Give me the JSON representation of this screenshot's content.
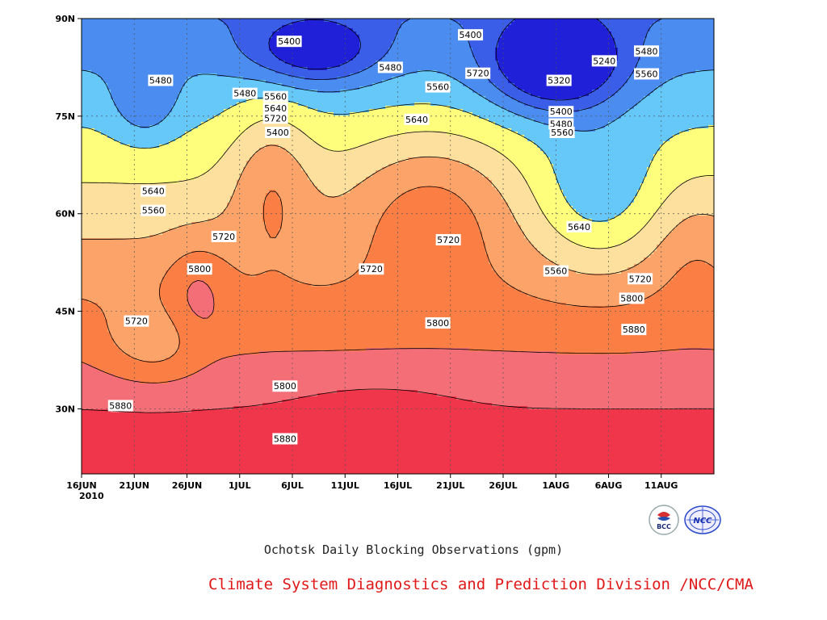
{
  "chart_data": {
    "type": "heatmap",
    "title": "Ochotsk Daily Blocking Observations (gpm)",
    "xlabel": "",
    "ylabel": "",
    "x_ticks": [
      "16JUN",
      "21JUN",
      "26JUN",
      "1JUL",
      "6JUL",
      "11JUL",
      "16JUL",
      "21JUL",
      "26JUL",
      "1AUG",
      "6AUG",
      "11AUG"
    ],
    "x_year_label": "2010",
    "xlim_days_from_16jun": [
      0,
      60
    ],
    "y_ticks": [
      "30N",
      "45N",
      "60N",
      "75N",
      "90N"
    ],
    "ylim_lat": [
      20,
      90
    ],
    "grid": "dotted",
    "contour_levels": [
      5240,
      5320,
      5400,
      5480,
      5560,
      5640,
      5720,
      5800,
      5880
    ],
    "contour_labels": [
      "5880",
      "5800",
      "5720",
      "5640",
      "5560",
      "5480",
      "5400",
      "5320",
      "5240"
    ],
    "field_values_gpm_sampled": [
      {
        "date": "16JUN",
        "lat": 30,
        "value": 5880
      },
      {
        "date": "16JUN",
        "lat": 45,
        "value": 5720
      },
      {
        "date": "16JUN",
        "lat": 60,
        "value": 5580
      },
      {
        "date": "16JUN",
        "lat": 75,
        "value": 5500
      },
      {
        "date": "26JUN",
        "lat": 45,
        "value": 5830
      },
      {
        "date": "4JUL",
        "lat": 70,
        "value": 5740
      },
      {
        "date": "18JUL",
        "lat": 60,
        "value": 5750
      },
      {
        "date": "29JUL",
        "lat": 87,
        "value": 5220
      },
      {
        "date": "1AUG",
        "lat": 55,
        "value": 5540
      },
      {
        "date": "11AUG",
        "lat": 30,
        "value": 5900
      }
    ],
    "colors": {
      "5880+": "#f0364a",
      "5800-5880": "#f46e78",
      "5720-5800": "#fb7e45",
      "5640-5720": "#fca36a",
      "5560-5640": "#fde09e",
      "5480-5560": "#fefe7c",
      "5400-5480": "#66c8f9",
      "5320-5400": "#4a8cf0",
      "5240-5320": "#3a5ee8",
      "<5240": "#2020d8"
    }
  },
  "caption": {
    "title": "Ochotsk Daily Blocking Observations (gpm)",
    "credit": "Climate System Diagnostics and Prediction Division /NCC/CMA"
  },
  "logos": {
    "bcc": "BCC",
    "ncc": "NCC"
  }
}
